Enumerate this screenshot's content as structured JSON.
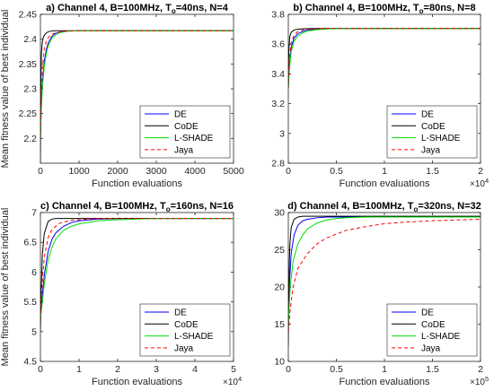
{
  "figure": {
    "ylabel": "Mean fitness value of best individual"
  },
  "chart_data": [
    {
      "type": "line",
      "title": "a) Channel 4, B=100MHz, T",
      "title_sub": "o",
      "title_end": "=40ns, N=4",
      "xlabel": "Function evaluations",
      "ylabel": "Mean fitness value of best individual",
      "xlim": [
        0,
        5000
      ],
      "ylim": [
        2.15,
        2.45
      ],
      "xticks": [
        0,
        1000,
        2000,
        3000,
        4000,
        5000
      ],
      "xtick_labels": [
        "0",
        "1000",
        "2000",
        "3000",
        "4000",
        "5000"
      ],
      "x_exponent": "",
      "yticks": [
        2.2,
        2.25,
        2.3,
        2.35,
        2.4,
        2.45
      ],
      "ytick_labels": [
        "2.2",
        "2.25",
        "2.3",
        "2.35",
        "2.4",
        "2.45"
      ],
      "legend": "lower-right",
      "series": [
        {
          "name": "DE",
          "color": "#0000ff",
          "dash": "solid",
          "x": [
            0,
            20,
            50,
            100,
            150,
            200,
            300,
            400,
            500,
            700,
            1000,
            2000,
            5000
          ],
          "y": [
            2.2,
            2.26,
            2.31,
            2.355,
            2.378,
            2.392,
            2.406,
            2.412,
            2.414,
            2.416,
            2.417,
            2.417,
            2.417
          ]
        },
        {
          "name": "CoDE",
          "color": "#000000",
          "dash": "solid",
          "x": [
            0,
            10,
            25,
            50,
            80,
            120,
            180,
            250,
            400,
            1000,
            5000
          ],
          "y": [
            2.15,
            2.3,
            2.37,
            2.395,
            2.405,
            2.41,
            2.414,
            2.416,
            2.417,
            2.417,
            2.417
          ]
        },
        {
          "name": "L-SHADE",
          "color": "#00e000",
          "dash": "solid",
          "x": [
            0,
            20,
            50,
            100,
            150,
            200,
            300,
            400,
            500,
            700,
            1000,
            2000,
            5000
          ],
          "y": [
            2.2,
            2.25,
            2.3,
            2.345,
            2.37,
            2.386,
            2.402,
            2.409,
            2.413,
            2.416,
            2.417,
            2.417,
            2.417
          ]
        },
        {
          "name": "Jaya",
          "color": "#ff0000",
          "dash": "dashed",
          "x": [
            0,
            20,
            50,
            100,
            150,
            200,
            300,
            400,
            600,
            1000,
            5000
          ],
          "y": [
            2.2,
            2.28,
            2.34,
            2.38,
            2.395,
            2.403,
            2.41,
            2.413,
            2.416,
            2.417,
            2.417
          ]
        }
      ]
    },
    {
      "type": "line",
      "title": "b) Channel 4, B=100MHz, T",
      "title_sub": "o",
      "title_end": "=80ns, N=8",
      "xlabel": "Function evaluations",
      "ylabel": "",
      "xlim": [
        0,
        20000
      ],
      "ylim": [
        2.8,
        3.8
      ],
      "xticks": [
        0,
        5000,
        10000,
        15000,
        20000
      ],
      "xtick_labels": [
        "0",
        "0.5",
        "1",
        "1.5",
        "2"
      ],
      "x_exponent": "4",
      "yticks": [
        2.8,
        3.0,
        3.2,
        3.4,
        3.6,
        3.8
      ],
      "ytick_labels": [
        "2.8",
        "3",
        "3.2",
        "3.4",
        "3.6",
        "3.8"
      ],
      "legend": "lower-right",
      "series": [
        {
          "name": "DE",
          "color": "#0000ff",
          "dash": "solid",
          "x": [
            0,
            100,
            300,
            600,
            1000,
            1500,
            2000,
            3000,
            5000,
            20000
          ],
          "y": [
            3.3,
            3.45,
            3.58,
            3.64,
            3.67,
            3.685,
            3.695,
            3.7,
            3.705,
            3.705
          ]
        },
        {
          "name": "CoDE",
          "color": "#000000",
          "dash": "solid",
          "x": [
            0,
            50,
            150,
            300,
            600,
            1000,
            1500,
            2500,
            20000
          ],
          "y": [
            3.3,
            3.55,
            3.65,
            3.68,
            3.695,
            3.7,
            3.703,
            3.705,
            3.705
          ]
        },
        {
          "name": "L-SHADE",
          "color": "#00e000",
          "dash": "solid",
          "x": [
            0,
            100,
            300,
            600,
            1000,
            1500,
            2000,
            3000,
            4000,
            6000,
            20000
          ],
          "y": [
            3.3,
            3.42,
            3.55,
            3.62,
            3.655,
            3.675,
            3.688,
            3.697,
            3.702,
            3.705,
            3.705
          ]
        },
        {
          "name": "Jaya",
          "color": "#ff0000",
          "dash": "dashed",
          "x": [
            0,
            100,
            300,
            600,
            1000,
            1500,
            2500,
            4000,
            20000
          ],
          "y": [
            3.3,
            3.5,
            3.61,
            3.66,
            3.685,
            3.695,
            3.702,
            3.705,
            3.705
          ]
        }
      ]
    },
    {
      "type": "line",
      "title": "c) Channel 4, B=100MHz, T",
      "title_sub": "o",
      "title_end": "=160ns, N=16",
      "xlabel": "Function evaluations",
      "ylabel": "Mean fitness value of best individual",
      "xlim": [
        0,
        50000
      ],
      "ylim": [
        4.5,
        7
      ],
      "xticks": [
        0,
        10000,
        20000,
        30000,
        40000,
        50000
      ],
      "xtick_labels": [
        "0",
        "1",
        "2",
        "3",
        "4",
        "5"
      ],
      "x_exponent": "4",
      "yticks": [
        4.5,
        5,
        5.5,
        6,
        6.5,
        7
      ],
      "ytick_labels": [
        "4.5",
        "5",
        "5.5",
        "6",
        "6.5",
        "7"
      ],
      "legend": "lower-right",
      "series": [
        {
          "name": "DE",
          "color": "#0000ff",
          "dash": "solid",
          "x": [
            0,
            500,
            1000,
            2000,
            3000,
            4000,
            6000,
            8000,
            10000,
            15000,
            20000,
            50000
          ],
          "y": [
            5.2,
            5.6,
            5.95,
            6.35,
            6.55,
            6.66,
            6.77,
            6.83,
            6.86,
            6.89,
            6.9,
            6.9
          ]
        },
        {
          "name": "CoDE",
          "color": "#000000",
          "dash": "solid",
          "x": [
            0,
            200,
            500,
            1000,
            2000,
            3000,
            4000,
            6000,
            10000,
            50000
          ],
          "y": [
            5.0,
            5.7,
            6.3,
            6.65,
            6.85,
            6.89,
            6.9,
            6.9,
            6.9,
            6.9
          ]
        },
        {
          "name": "L-SHADE",
          "color": "#00e000",
          "dash": "solid",
          "x": [
            0,
            500,
            1000,
            2000,
            3000,
            4000,
            6000,
            8000,
            10000,
            15000,
            20000,
            30000,
            50000
          ],
          "y": [
            5.2,
            5.5,
            5.8,
            6.2,
            6.42,
            6.56,
            6.7,
            6.77,
            6.81,
            6.86,
            6.88,
            6.9,
            6.9
          ]
        },
        {
          "name": "Jaya",
          "color": "#ff0000",
          "dash": "dashed",
          "x": [
            0,
            500,
            1000,
            2000,
            3000,
            5000,
            8000,
            10000,
            15000,
            20000,
            50000
          ],
          "y": [
            5.2,
            5.85,
            6.25,
            6.58,
            6.72,
            6.82,
            6.87,
            6.88,
            6.9,
            6.9,
            6.9
          ]
        }
      ]
    },
    {
      "type": "line",
      "title": "d) Channel 4, B=100MHz, T",
      "title_sub": "o",
      "title_end": "=320ns, N=32",
      "xlabel": "Function evaluations",
      "ylabel": "",
      "xlim": [
        0,
        200000
      ],
      "ylim": [
        10,
        30
      ],
      "xticks": [
        0,
        50000,
        100000,
        150000,
        200000
      ],
      "xtick_labels": [
        "0",
        "0.5",
        "1",
        "1.5",
        "2"
      ],
      "x_exponent": "5",
      "yticks": [
        10,
        15,
        20,
        25,
        30
      ],
      "ytick_labels": [
        "10",
        "15",
        "20",
        "25",
        "30"
      ],
      "legend": "lower-right",
      "series": [
        {
          "name": "DE",
          "color": "#0000ff",
          "dash": "solid",
          "x": [
            0,
            1000,
            3000,
            6000,
            10000,
            15000,
            20000,
            30000,
            40000,
            200000
          ],
          "y": [
            15,
            20,
            24.5,
            27,
            28.3,
            28.9,
            29.1,
            29.3,
            29.4,
            29.4
          ]
        },
        {
          "name": "CoDE",
          "color": "#000000",
          "dash": "solid",
          "x": [
            0,
            500,
            1500,
            3000,
            6000,
            10000,
            15000,
            25000,
            200000
          ],
          "y": [
            12,
            20,
            25.5,
            28,
            29.1,
            29.4,
            29.5,
            29.5,
            29.5
          ]
        },
        {
          "name": "L-SHADE",
          "color": "#00e000",
          "dash": "solid",
          "x": [
            0,
            2000,
            5000,
            10000,
            15000,
            20000,
            30000,
            40000,
            50000,
            60000,
            80000,
            200000
          ],
          "y": [
            15,
            20,
            23.5,
            25.8,
            27,
            27.8,
            28.6,
            29,
            29.2,
            29.3,
            29.4,
            29.4
          ]
        },
        {
          "name": "Jaya",
          "color": "#ff0000",
          "dash": "dashed",
          "x": [
            0,
            2000,
            5000,
            10000,
            20000,
            30000,
            40000,
            60000,
            80000,
            100000,
            120000,
            150000,
            200000
          ],
          "y": [
            14,
            17,
            20,
            22.5,
            24.5,
            25.8,
            26.6,
            27.6,
            28.1,
            28.5,
            28.7,
            28.9,
            29.1
          ]
        }
      ]
    }
  ]
}
